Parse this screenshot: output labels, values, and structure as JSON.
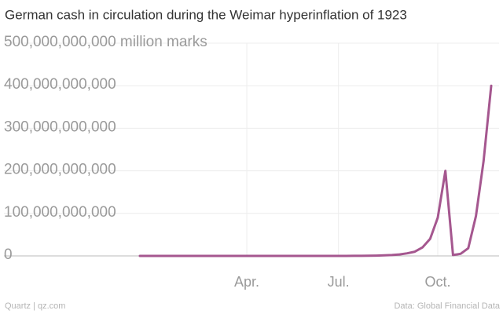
{
  "chart_data": {
    "type": "line",
    "title": "German cash in circulation during the Weimar hyperinflation of 1923",
    "categories": [
      null,
      null,
      null,
      null,
      null,
      null,
      null,
      null,
      null,
      null,
      null,
      null,
      null,
      null,
      "Apr.",
      null,
      null,
      null,
      null,
      null,
      null,
      null,
      null,
      null,
      null,
      null,
      "Jul.",
      null,
      null,
      null,
      null,
      null,
      null,
      null,
      null,
      null,
      null,
      null,
      null,
      "Oct.",
      null,
      null,
      null,
      null,
      null,
      null,
      null
    ],
    "series": [
      {
        "color": "#a5578f",
        "values": [
          2000000,
          2200000,
          2600000,
          3200000,
          3500000,
          3600000,
          3500000,
          3600000,
          4000000,
          4500000,
          5000000,
          5500000,
          5800000,
          6000000,
          6500000,
          7000000,
          8000000,
          9000000,
          10000000,
          12000000,
          14000000,
          17000000,
          20000000,
          24000000,
          30000000,
          40000000,
          55000000,
          80000000,
          120000000,
          200000000,
          400000000,
          700000000,
          1200000000,
          2000000000,
          3500000000,
          6000000000,
          10000000000,
          20000000000,
          40000000000,
          90000000000,
          200000000000,
          2000000000,
          5000000000,
          18000000000,
          94000000000,
          223000000000,
          400000000000
        ]
      }
    ],
    "ylim": [
      0,
      500000000000
    ],
    "yticks": [
      {
        "value": 0,
        "label": "0"
      },
      {
        "value": 100000000000,
        "label": "100,000,000,000"
      },
      {
        "value": 200000000000,
        "label": "200,000,000,000"
      },
      {
        "value": 300000000000,
        "label": "300,000,000,000"
      },
      {
        "value": 400000000000,
        "label": "400,000,000,000"
      },
      {
        "value": 500000000000,
        "label": "500,000,000,000 million marks"
      }
    ],
    "grid": true,
    "source": "Data: Global Financial Data",
    "credit": "Quartz | qz.com"
  }
}
